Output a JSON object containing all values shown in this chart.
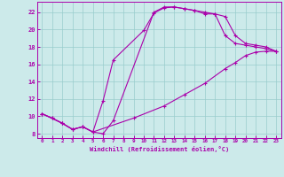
{
  "xlabel": "Windchill (Refroidissement éolien,°C)",
  "bg_color": "#cceaea",
  "line_color": "#aa00aa",
  "grid_color": "#99cccc",
  "xlim": [
    -0.5,
    23.5
  ],
  "ylim": [
    7.5,
    23.2
  ],
  "yticks": [
    8,
    10,
    12,
    14,
    16,
    18,
    20,
    22
  ],
  "xticks": [
    0,
    1,
    2,
    3,
    4,
    5,
    6,
    7,
    8,
    9,
    10,
    11,
    12,
    13,
    14,
    15,
    16,
    17,
    18,
    19,
    20,
    21,
    22,
    23
  ],
  "s1_x": [
    0,
    1,
    2,
    3,
    4,
    5,
    6,
    7,
    11,
    12,
    13,
    14,
    15,
    16,
    17,
    18,
    19,
    20,
    21,
    22,
    23
  ],
  "s1_y": [
    10.3,
    9.8,
    9.2,
    8.5,
    8.8,
    8.2,
    8.0,
    9.5,
    22.0,
    22.6,
    22.6,
    22.4,
    22.2,
    21.8,
    21.8,
    19.3,
    18.4,
    18.2,
    18.0,
    17.8,
    17.5
  ],
  "s2_x": [
    0,
    2,
    3,
    4,
    5,
    6,
    7,
    10,
    11,
    12,
    13,
    14,
    15,
    16,
    17,
    18,
    19,
    20,
    21,
    22,
    23
  ],
  "s2_y": [
    10.3,
    9.2,
    8.5,
    8.8,
    8.2,
    11.8,
    16.5,
    19.9,
    21.9,
    22.5,
    22.6,
    22.4,
    22.2,
    22.0,
    21.8,
    21.5,
    19.3,
    18.4,
    18.2,
    18.0,
    17.5
  ],
  "s3_x": [
    0,
    1,
    2,
    3,
    4,
    5,
    9,
    12,
    14,
    16,
    18,
    19,
    20,
    21,
    22,
    23
  ],
  "s3_y": [
    10.3,
    9.8,
    9.2,
    8.5,
    8.8,
    8.2,
    9.8,
    11.2,
    12.5,
    13.8,
    15.5,
    16.2,
    17.0,
    17.4,
    17.5,
    17.5
  ]
}
